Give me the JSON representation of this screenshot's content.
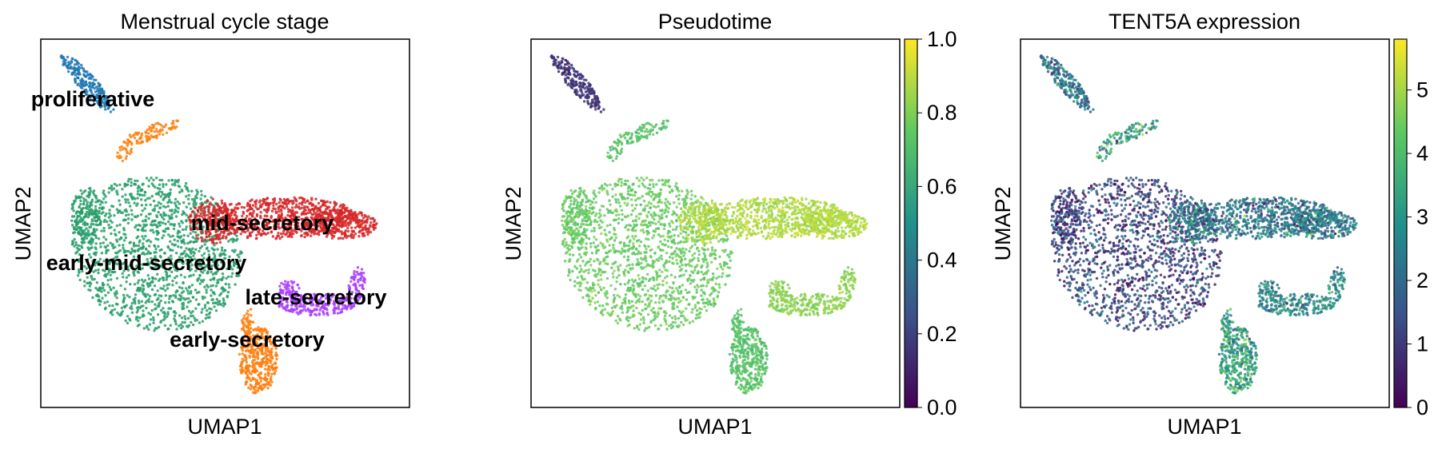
{
  "chart_data": [
    {
      "type": "scatter",
      "title": "Menstrual cycle stage",
      "xlabel": "UMAP1",
      "ylabel": "UMAP2",
      "coloring": "categorical",
      "groups": [
        {
          "name": "proliferative",
          "color": "#1f77b4"
        },
        {
          "name": "early-mid-secretory",
          "color": "#279e68"
        },
        {
          "name": "mid-secretory",
          "color": "#d62728"
        },
        {
          "name": "late-secretory",
          "color": "#aa40fc"
        },
        {
          "name": "early-secretory",
          "color": "#ff7f0e"
        }
      ],
      "cluster_labels": [
        {
          "text": "proliferative"
        },
        {
          "text": "mid-secretory"
        },
        {
          "text": "early-mid-secretory"
        },
        {
          "text": "late-secretory"
        },
        {
          "text": "early-secretory"
        }
      ]
    },
    {
      "type": "scatter",
      "title": "Pseudotime",
      "xlabel": "UMAP1",
      "ylabel": "UMAP2",
      "coloring": "continuous",
      "colormap": "viridis",
      "colorbar": {
        "min": 0.0,
        "max": 1.0,
        "ticks": [
          "0.0",
          "0.2",
          "0.4",
          "0.6",
          "0.8",
          "1.0"
        ]
      },
      "cluster_values": [
        {
          "cluster": "proliferative",
          "value": 0.15
        },
        {
          "cluster": "early-secretory",
          "value": 0.72
        },
        {
          "cluster": "early-mid-secretory",
          "value": 0.76
        },
        {
          "cluster": "mid-secretory",
          "value": 0.88
        },
        {
          "cluster": "late-secretory",
          "value": 0.82
        }
      ]
    },
    {
      "type": "scatter",
      "title": "TENT5A expression",
      "xlabel": "UMAP1",
      "ylabel": "UMAP2",
      "coloring": "continuous",
      "colormap": "viridis",
      "colorbar": {
        "min": 0,
        "max": 5.8,
        "ticks": [
          "0",
          "1",
          "2",
          "3",
          "4",
          "5"
        ]
      },
      "cluster_values": [
        {
          "cluster": "proliferative",
          "value": 2.2
        },
        {
          "cluster": "early-secretory",
          "value": 3.3
        },
        {
          "cluster": "early-mid-secretory",
          "value": 1.2
        },
        {
          "cluster": "mid-secretory",
          "value": 2.3
        },
        {
          "cluster": "late-secretory",
          "value": 2.7
        }
      ]
    }
  ]
}
